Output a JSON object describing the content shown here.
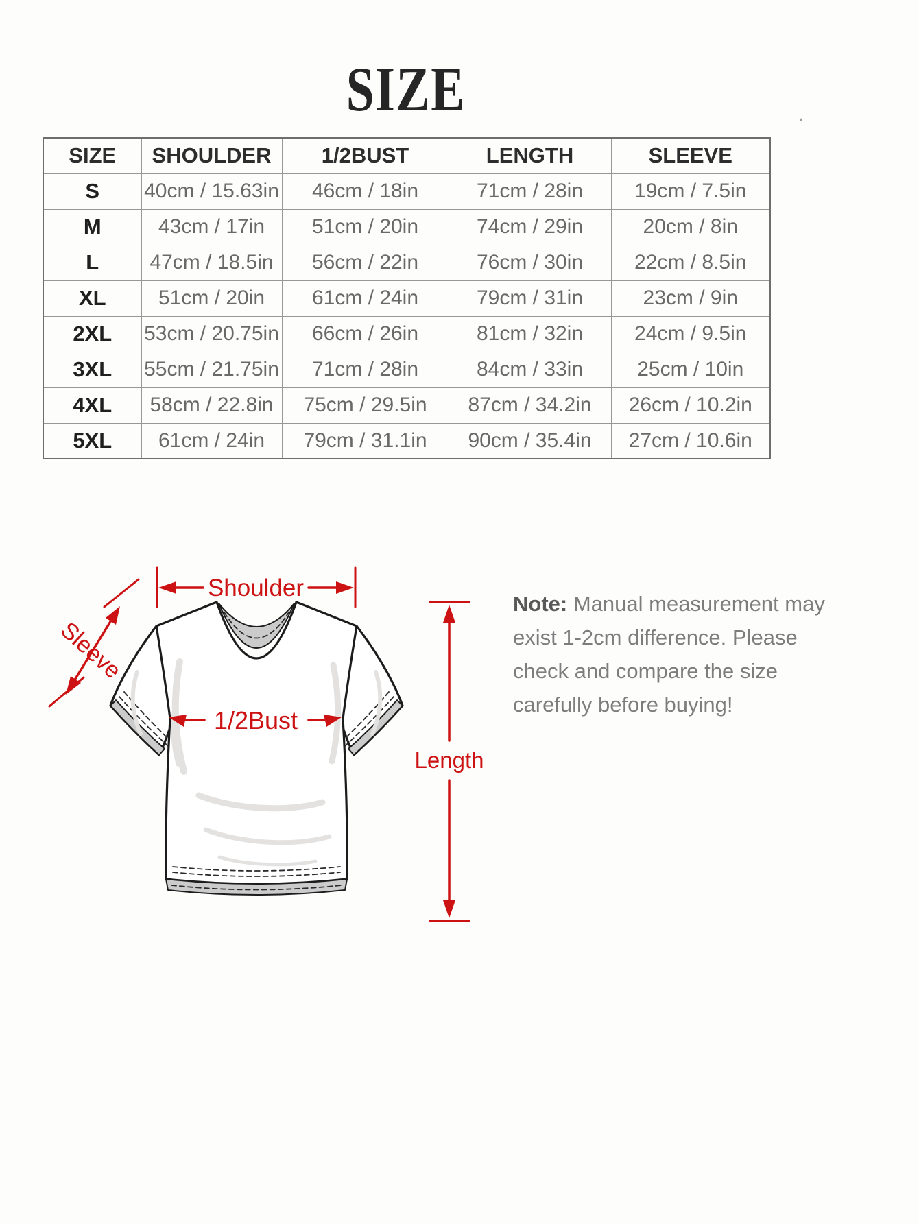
{
  "page_title": "SIZE",
  "colors": {
    "accent_red": "#cc1212",
    "table_border": "#989898",
    "header_text": "#2d2d2d",
    "value_text": "#696969",
    "note_text": "#7d7d7d",
    "shirt_gray": "#cbcbcb",
    "background": "#fdfdfc"
  },
  "table": {
    "headers": [
      "SIZE",
      "SHOULDER",
      "1/2BUST",
      "LENGTH",
      "SLEEVE"
    ],
    "rows": [
      [
        "S",
        "40cm / 15.63in",
        "46cm / 18in",
        "71cm / 28in",
        "19cm / 7.5in"
      ],
      [
        "M",
        "43cm / 17in",
        "51cm / 20in",
        "74cm / 29in",
        "20cm / 8in"
      ],
      [
        "L",
        "47cm / 18.5in",
        "56cm / 22in",
        "76cm / 30in",
        "22cm / 8.5in"
      ],
      [
        "XL",
        "51cm / 20in",
        "61cm / 24in",
        "79cm / 31in",
        "23cm / 9in"
      ],
      [
        "2XL",
        "53cm / 20.75in",
        "66cm / 26in",
        "81cm / 32in",
        "24cm / 9.5in"
      ],
      [
        "3XL",
        "55cm / 21.75in",
        "71cm / 28in",
        "84cm / 33in",
        "25cm / 10in"
      ],
      [
        "4XL",
        "58cm / 22.8in",
        "75cm / 29.5in",
        "87cm / 34.2in",
        "26cm / 10.2in"
      ],
      [
        "5XL",
        "61cm / 24in",
        "79cm / 31.1in",
        "90cm / 35.4in",
        "27cm / 10.6in"
      ]
    ]
  },
  "diagram": {
    "labels": {
      "shoulder": "Shoulder",
      "sleeve": "Sleeve",
      "bust": "1/2Bust",
      "length": "Length"
    }
  },
  "note": {
    "label": "Note:",
    "lines": [
      "Manual measurement may",
      "exist 1-2cm difference. Please",
      "check and compare the size",
      "carefully before buying!"
    ]
  },
  "stray_mark": "."
}
